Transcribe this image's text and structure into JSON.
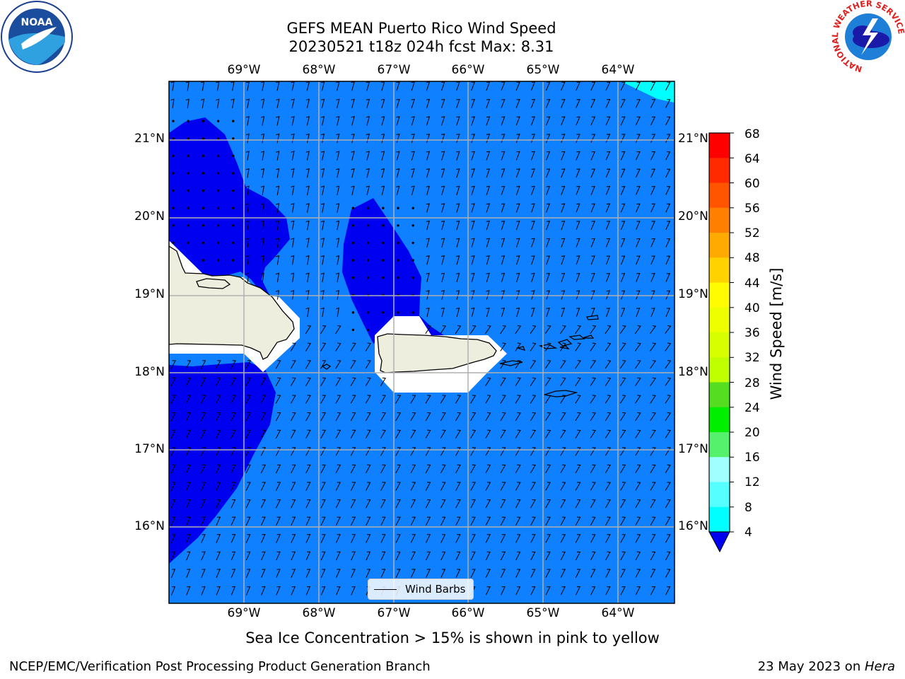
{
  "title": {
    "line1": "GEFS MEAN Puerto Rico Wind Speed",
    "line2": "20230521 t18z 024h fcst   Max: 8.31"
  },
  "map": {
    "lon_labels": [
      "69°W",
      "68°W",
      "67°W",
      "66°W",
      "65°W",
      "64°W"
    ],
    "lat_labels": [
      "21°N",
      "20°N",
      "19°N",
      "18°N",
      "17°N",
      "16°N"
    ],
    "legend_label": "Wind Barbs",
    "colors": {
      "ocean_4_8": "#0f80ff",
      "below_4": "#0000f0",
      "band_8_12": "#00ffff",
      "land": "#eeeedf"
    }
  },
  "colorbar": {
    "title": "Wind Speed [m/s]",
    "ticks": [
      "68",
      "64",
      "60",
      "56",
      "52",
      "48",
      "44",
      "40",
      "36",
      "32",
      "28",
      "24",
      "20",
      "16",
      "12",
      "8",
      "4"
    ],
    "colors": [
      "#ff0000",
      "#ff2a00",
      "#ff5500",
      "#ff8000",
      "#ffaa00",
      "#ffd200",
      "#fffb00",
      "#eeff00",
      "#d8ff00",
      "#c0ff00",
      "#55dd22",
      "#00ee00",
      "#55f06c",
      "#a0ffff",
      "#55ffff",
      "#00ffff",
      "#0f80ff"
    ],
    "under_color": "#0000f0"
  },
  "footnote": "Sea Ice Concentration > 15% is shown in pink to yellow",
  "credit": "NCEP/EMC/Verification Post Processing Product Generation Branch",
  "date": {
    "text": "23 May 2023 on ",
    "host": "Hera"
  },
  "logos": {
    "left": "NOAA",
    "right_ring": "NATIONAL WEATHER SERVICE"
  }
}
